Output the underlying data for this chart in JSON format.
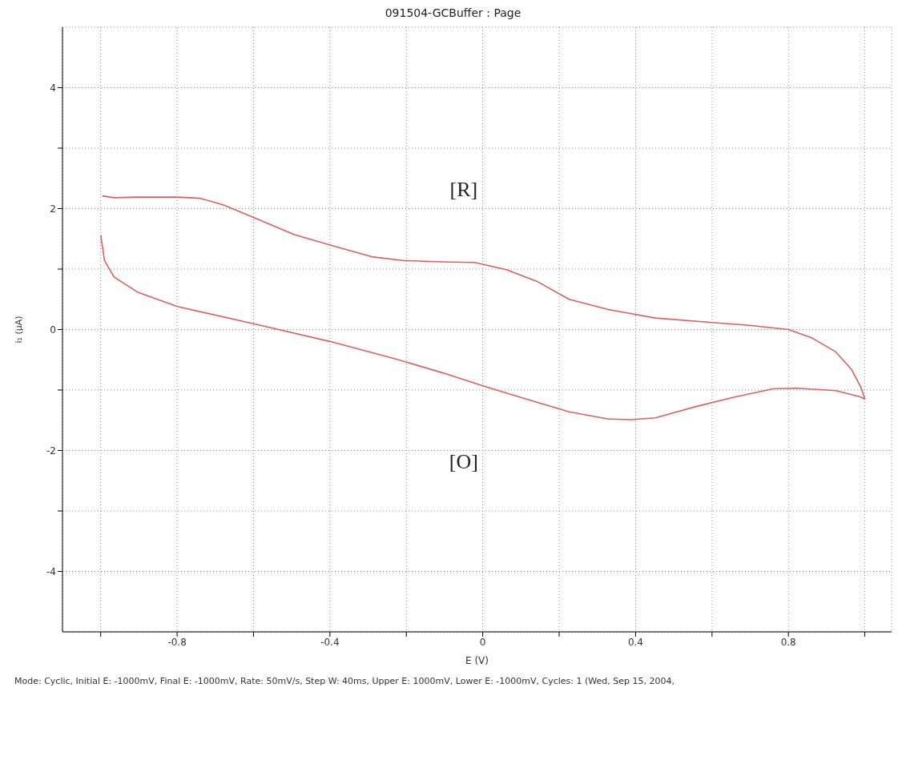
{
  "chart_data": {
    "type": "line",
    "title": "091504-GCBuffer : Page",
    "xlabel": "E (V)",
    "ylabel": "i₁ (µA)",
    "xlim": [
      -1.1,
      1.07
    ],
    "xticks": [
      {
        "value": -1,
        "label": null
      },
      -0.8,
      {
        "value": -0.6,
        "label": null
      },
      -0.4,
      {
        "value": -0.2,
        "label": null
      },
      0,
      {
        "value": 0.2,
        "label": null
      },
      0.4,
      {
        "value": 0.6,
        "label": null
      },
      0.8,
      {
        "value": 1,
        "label": null
      }
    ],
    "ylim": [
      -5,
      5
    ],
    "yticks": [
      -4,
      {
        "value": -3,
        "label": null
      },
      -2,
      {
        "value": -1,
        "label": null
      },
      0,
      {
        "value": 1,
        "label": null
      },
      2,
      {
        "value": 3,
        "label": null
      },
      4
    ],
    "grid": true,
    "marker": "none",
    "line_style": "solid",
    "series": [
      {
        "color": "#d9605f",
        "x": [
          -1.0,
          -0.99,
          -0.965,
          -0.904,
          -0.799,
          -0.595,
          -0.398,
          -0.226,
          -0.103,
          0,
          0.103,
          0.226,
          0.329,
          0.39,
          0.452,
          0.554,
          0.657,
          0.76,
          0.821,
          0.924,
          0.986,
          1.0,
          0.99,
          0.965,
          0.924,
          0.862,
          0.8,
          0.698,
          0.595,
          0.452,
          0.329,
          0.226,
          0.144,
          0.062,
          -0.021,
          -0.103,
          -0.205,
          -0.287,
          -0.39,
          -0.493,
          -0.595,
          -0.678,
          -0.739,
          -0.799,
          -0.904,
          -0.965,
          -0.996
        ],
        "values": [
          1.56,
          1.14,
          0.87,
          0.62,
          0.38,
          0.09,
          -0.2,
          -0.49,
          -0.72,
          -0.93,
          -1.13,
          -1.36,
          -1.48,
          -1.49,
          -1.46,
          -1.28,
          -1.12,
          -0.98,
          -0.97,
          -1.01,
          -1.11,
          -1.15,
          -0.96,
          -0.66,
          -0.37,
          -0.14,
          0,
          0.07,
          0.12,
          0.19,
          0.33,
          0.5,
          0.79,
          0.99,
          1.11,
          1.12,
          1.14,
          1.2,
          1.38,
          1.57,
          1.84,
          2.06,
          2.17,
          2.19,
          2.19,
          2.18,
          2.21
        ]
      }
    ],
    "annotations": [
      "[R]",
      "[O]",
      "Mode: Cyclic, Initial E: -1000mV, Final E: -1000mV, Rate: 50mV/s, Step W: 40ms, Upper E: 1000mV, Lower E: -1000mV, Cycles: 1 (Wed, Sep 15,  2004,"
    ]
  }
}
